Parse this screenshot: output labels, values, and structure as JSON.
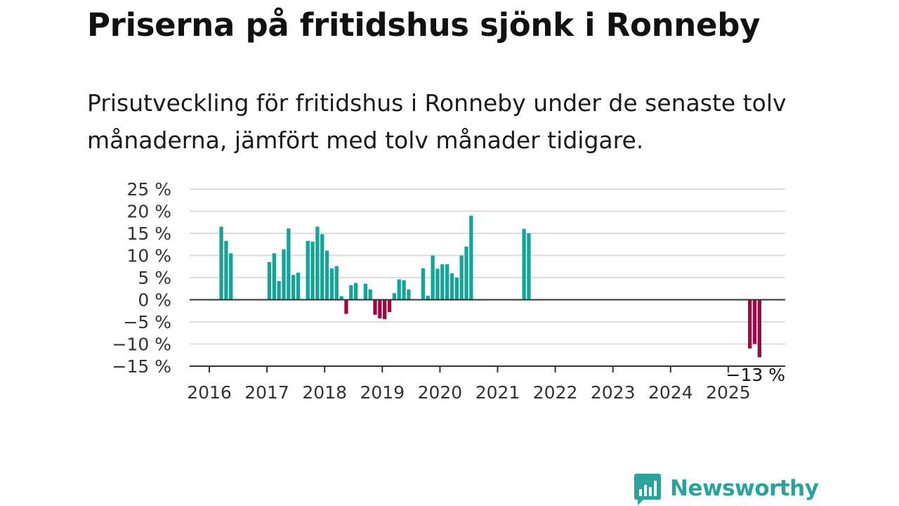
{
  "title": "Priserna på fritidshus sjönk i Ronneby",
  "subtitle": "Prisutveckling för fritidshus i Ronneby under de senaste tolv månaderna, jämfört med tolv månader tidigare.",
  "brand": {
    "name": "Newsworthy",
    "logo_icon": "bar-chart-speech-bubble-icon"
  },
  "colors": {
    "positive": "#16a398",
    "negative": "#9b0a47",
    "grid": "#dddddd",
    "zero_line": "#333333",
    "axis_text": "#333333",
    "brand": "#2aa39a"
  },
  "chart_data": {
    "type": "bar",
    "title": "",
    "xlabel": "",
    "ylabel": "",
    "ylim": [
      -15,
      25
    ],
    "y_ticks": [
      25,
      20,
      15,
      10,
      5,
      0,
      -5,
      -10,
      -15
    ],
    "y_tick_labels": [
      "25 %",
      "20 %",
      "15 %",
      "10 %",
      "5 %",
      "0 %",
      "−5 %",
      "−10 %",
      "−15 %"
    ],
    "x_ticks": [
      "2016",
      "2017",
      "2018",
      "2019",
      "2020",
      "2021",
      "2022",
      "2023",
      "2024",
      "2025"
    ],
    "grid": "horizontal",
    "annotation": "−13 %",
    "series": [
      {
        "values": [
          {
            "date": "2016-03",
            "value": 16.5
          },
          {
            "date": "2016-04",
            "value": 13.3
          },
          {
            "date": "2016-05",
            "value": 10.5
          },
          {
            "date": "2017-01",
            "value": 8.5
          },
          {
            "date": "2017-02",
            "value": 10.5
          },
          {
            "date": "2017-03",
            "value": 4.2
          },
          {
            "date": "2017-04",
            "value": 11.4
          },
          {
            "date": "2017-05",
            "value": 16.1
          },
          {
            "date": "2017-06",
            "value": 5.6
          },
          {
            "date": "2017-07",
            "value": 6.1
          },
          {
            "date": "2017-09",
            "value": 13.3
          },
          {
            "date": "2017-10",
            "value": 13.1
          },
          {
            "date": "2017-11",
            "value": 16.5
          },
          {
            "date": "2017-12",
            "value": 14.8
          },
          {
            "date": "2018-01",
            "value": 11.1
          },
          {
            "date": "2018-02",
            "value": 7.1
          },
          {
            "date": "2018-03",
            "value": 7.6
          },
          {
            "date": "2018-04",
            "value": 0.8
          },
          {
            "date": "2018-05",
            "value": -3.2
          },
          {
            "date": "2018-06",
            "value": 3.3
          },
          {
            "date": "2018-07",
            "value": 3.8
          },
          {
            "date": "2018-09",
            "value": 3.6
          },
          {
            "date": "2018-10",
            "value": 2.3
          },
          {
            "date": "2018-11",
            "value": -3.4
          },
          {
            "date": "2018-12",
            "value": -4.2
          },
          {
            "date": "2019-01",
            "value": -4.4
          },
          {
            "date": "2019-02",
            "value": -2.8
          },
          {
            "date": "2019-03",
            "value": 1.5
          },
          {
            "date": "2019-04",
            "value": 4.6
          },
          {
            "date": "2019-05",
            "value": 4.4
          },
          {
            "date": "2019-06",
            "value": 2.3
          },
          {
            "date": "2019-09",
            "value": 7.1
          },
          {
            "date": "2019-10",
            "value": 0.9
          },
          {
            "date": "2019-11",
            "value": 10.0
          },
          {
            "date": "2019-12",
            "value": 7.0
          },
          {
            "date": "2020-01",
            "value": 8.0
          },
          {
            "date": "2020-02",
            "value": 8.0
          },
          {
            "date": "2020-03",
            "value": 6.0
          },
          {
            "date": "2020-04",
            "value": 5.0
          },
          {
            "date": "2020-05",
            "value": 10.0
          },
          {
            "date": "2020-06",
            "value": 12.0
          },
          {
            "date": "2020-07",
            "value": 19.0
          },
          {
            "date": "2021-06",
            "value": 16.0
          },
          {
            "date": "2021-07",
            "value": 15.0
          },
          {
            "date": "2025-05",
            "value": -11.0
          },
          {
            "date": "2025-06",
            "value": -10.0
          },
          {
            "date": "2025-07",
            "value": -13.0
          }
        ]
      }
    ]
  }
}
